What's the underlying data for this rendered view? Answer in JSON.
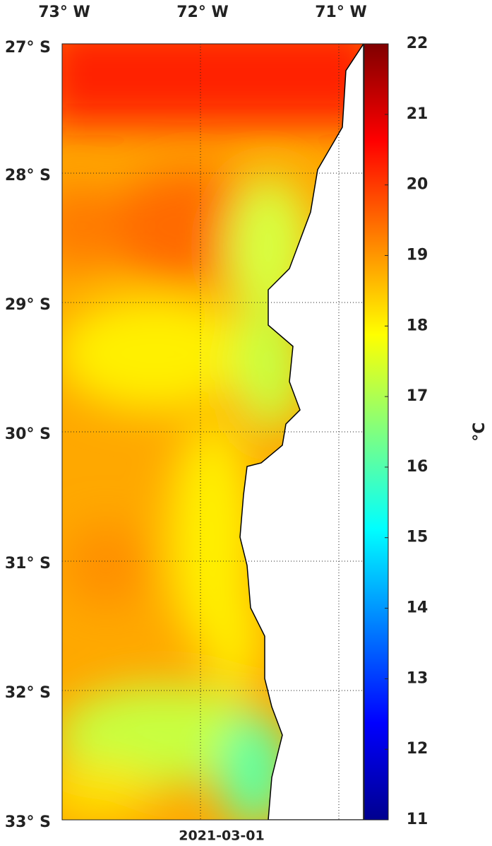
{
  "map": {
    "lon_labels": [
      "73° W",
      "72° W",
      "71° W"
    ],
    "lat_labels": [
      "27° S",
      "28° S",
      "29° S",
      "30° S",
      "31° S",
      "32° S",
      "33° S"
    ],
    "colorbar": {
      "lim": [
        11,
        22
      ],
      "ticks": [
        11,
        12,
        13,
        14,
        15,
        16,
        17,
        18,
        19,
        20,
        21,
        22
      ],
      "unit": "°C"
    },
    "date": "2021-03-01"
  }
}
